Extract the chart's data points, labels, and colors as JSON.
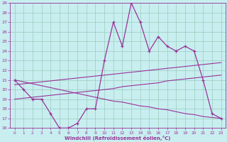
{
  "x": [
    0,
    1,
    2,
    3,
    4,
    5,
    6,
    7,
    8,
    9,
    10,
    11,
    12,
    13,
    14,
    15,
    16,
    17,
    18,
    19,
    20,
    21,
    22,
    23
  ],
  "windchill": [
    21,
    20,
    19,
    19,
    17.5,
    16,
    16,
    16.5,
    18,
    18,
    23,
    27,
    24.5,
    29,
    27,
    24,
    25.5,
    24.5,
    24,
    24.5,
    24,
    21,
    17.5,
    17
  ],
  "line2": [
    19.0,
    19.1,
    19.2,
    19.3,
    19.4,
    19.5,
    19.6,
    19.7,
    19.8,
    19.9,
    20.0,
    20.1,
    20.3,
    20.4,
    20.5,
    20.6,
    20.7,
    20.9,
    21.0,
    21.1,
    21.2,
    21.3,
    21.4,
    21.5
  ],
  "line3": [
    20.5,
    20.6,
    20.7,
    20.8,
    20.9,
    21.0,
    21.1,
    21.2,
    21.3,
    21.4,
    21.5,
    21.6,
    21.7,
    21.8,
    21.9,
    22.0,
    22.1,
    22.2,
    22.3,
    22.4,
    22.5,
    22.6,
    22.7,
    22.8
  ],
  "line4": [
    21.0,
    20.8,
    20.6,
    20.4,
    20.2,
    20.0,
    19.8,
    19.6,
    19.4,
    19.2,
    19.0,
    18.8,
    18.7,
    18.5,
    18.3,
    18.2,
    18.0,
    17.9,
    17.7,
    17.5,
    17.4,
    17.2,
    17.1,
    17.0
  ],
  "color": "#993399",
  "bg_color": "#c8eef0",
  "grid_color": "#99ccbb",
  "xlabel": "Windchill (Refroidissement éolien,°C)",
  "ylim": [
    16,
    29
  ],
  "xlim": [
    -0.5,
    23.5
  ],
  "yticks": [
    16,
    17,
    18,
    19,
    20,
    21,
    22,
    23,
    24,
    25,
    26,
    27,
    28,
    29
  ],
  "xticks": [
    0,
    1,
    2,
    3,
    4,
    5,
    6,
    7,
    8,
    9,
    10,
    11,
    12,
    13,
    14,
    15,
    16,
    17,
    18,
    19,
    20,
    21,
    22,
    23
  ]
}
